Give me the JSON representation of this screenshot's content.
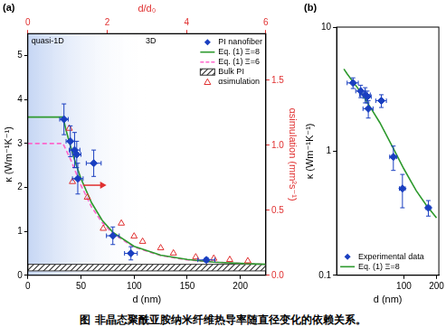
{
  "caption": "图   非晶态聚酰亚胺纳米纤维热导率随直径变化的依赖关系。",
  "chart_data": [
    {
      "type": "scatter",
      "panel": "(a)",
      "x_label": "d (nm)",
      "y_label": "κ (Wm⁻¹K⁻¹)",
      "y2_label": "αsimulation (mm²s⁻¹)",
      "x2_label": "d/d₀",
      "xlim": [
        0,
        224
      ],
      "xticks": [
        0,
        50,
        100,
        150,
        200
      ],
      "ylim": [
        0,
        5.5
      ],
      "yticks": [
        0,
        1,
        2,
        3,
        4,
        5
      ],
      "y2lim": [
        0,
        1.86
      ],
      "y2ticks": [
        {
          "value": 0,
          "label": "0.0"
        },
        0.5,
        {
          "value": 1,
          "label": "1.0"
        },
        1.5
      ],
      "x2lim": [
        0,
        6
      ],
      "x2ticks": [
        0,
        2,
        4,
        6
      ],
      "annotations": [
        "quasi-1D",
        "3D"
      ],
      "grid": false,
      "legend": "upper right",
      "series": [
        {
          "name": "PI nanofiber",
          "type": "scatter",
          "marker": "diamond",
          "color": "#1a3fc0",
          "x": [
            34,
            40,
            44,
            46,
            47,
            62,
            80,
            97,
            168
          ],
          "values": [
            3.55,
            3.05,
            2.85,
            2.75,
            2.2,
            2.55,
            0.9,
            0.5,
            0.35
          ],
          "y_error": [
            0.35,
            0.35,
            0.4,
            0.3,
            0.35,
            0.3,
            0.2,
            0.15,
            0.05
          ],
          "x_error": [
            4,
            4,
            5,
            4,
            5,
            7,
            6,
            6,
            8
          ]
        },
        {
          "name": "Eq. (1) Ξ=8",
          "type": "line",
          "line_style": "solid",
          "color": "#2e9a2e",
          "x": [
            0,
            33,
            36,
            40,
            45,
            50,
            60,
            70,
            80,
            100,
            125,
            150,
            175,
            200,
            224
          ],
          "values": [
            3.6,
            3.6,
            3.3,
            2.95,
            2.55,
            2.2,
            1.65,
            1.25,
            0.98,
            0.66,
            0.46,
            0.36,
            0.3,
            0.27,
            0.25
          ]
        },
        {
          "name": "Eq. (1) Ξ=6",
          "type": "line",
          "line_style": "dashed",
          "color": "#ff66cc",
          "x": [
            0,
            33,
            36,
            40,
            45,
            50,
            60,
            70,
            80,
            100,
            125,
            150,
            175,
            200,
            224
          ],
          "values": [
            3.0,
            3.0,
            2.85,
            2.65,
            2.35,
            2.05,
            1.55,
            1.2,
            0.95,
            0.64,
            0.45,
            0.35,
            0.3,
            0.27,
            0.25
          ]
        },
        {
          "name": "Bulk PI",
          "type": "band",
          "color": "#333333",
          "x": [
            0,
            224
          ],
          "values": [
            0.25,
            0.25
          ],
          "low": [
            0.1,
            0.1
          ]
        },
        {
          "name": "αsimulation",
          "type": "scatter",
          "marker": "triangle",
          "axis": "y2",
          "color": "#e03030",
          "x": [
            39,
            42,
            56,
            71,
            88,
            100,
            108,
            125,
            137,
            158,
            175,
            190,
            207
          ],
          "values": [
            1.13,
            0.72,
            0.6,
            0.36,
            0.4,
            0.3,
            0.26,
            0.21,
            0.17,
            0.14,
            0.13,
            0.12,
            0.11
          ]
        }
      ]
    },
    {
      "type": "scatter",
      "panel": "(b)",
      "log": true,
      "x_label": "d (nm)",
      "y_label": "κ (Wm⁻¹K⁻¹)",
      "xlim": [
        24,
        210
      ],
      "xticks": [
        100,
        200
      ],
      "ylim": [
        0.1,
        10
      ],
      "yticks": [
        0.1,
        1,
        10
      ],
      "grid": false,
      "legend": "lower left",
      "series": [
        {
          "name": "Experimental data",
          "type": "scatter",
          "marker": "diamond",
          "color": "#1a3fc0",
          "x": [
            34,
            40,
            44,
            46,
            47,
            62,
            80,
            97,
            168
          ],
          "values": [
            3.55,
            3.05,
            2.85,
            2.75,
            2.2,
            2.55,
            0.9,
            0.5,
            0.35
          ],
          "y_error": [
            0.35,
            0.35,
            0.4,
            0.3,
            0.35,
            0.3,
            0.2,
            0.15,
            0.05
          ],
          "x_error": [
            4,
            4,
            5,
            4,
            5,
            7,
            6,
            6,
            8
          ]
        },
        {
          "name": "Eq. (1) Ξ=8",
          "type": "line",
          "line_style": "solid",
          "color": "#2e9a2e",
          "x": [
            28,
            30,
            35,
            40,
            50,
            60,
            80,
            100,
            130,
            160,
            200
          ],
          "values": [
            4.6,
            4.2,
            3.5,
            3.0,
            2.2,
            1.7,
            1.05,
            0.72,
            0.48,
            0.37,
            0.29
          ]
        }
      ]
    }
  ]
}
